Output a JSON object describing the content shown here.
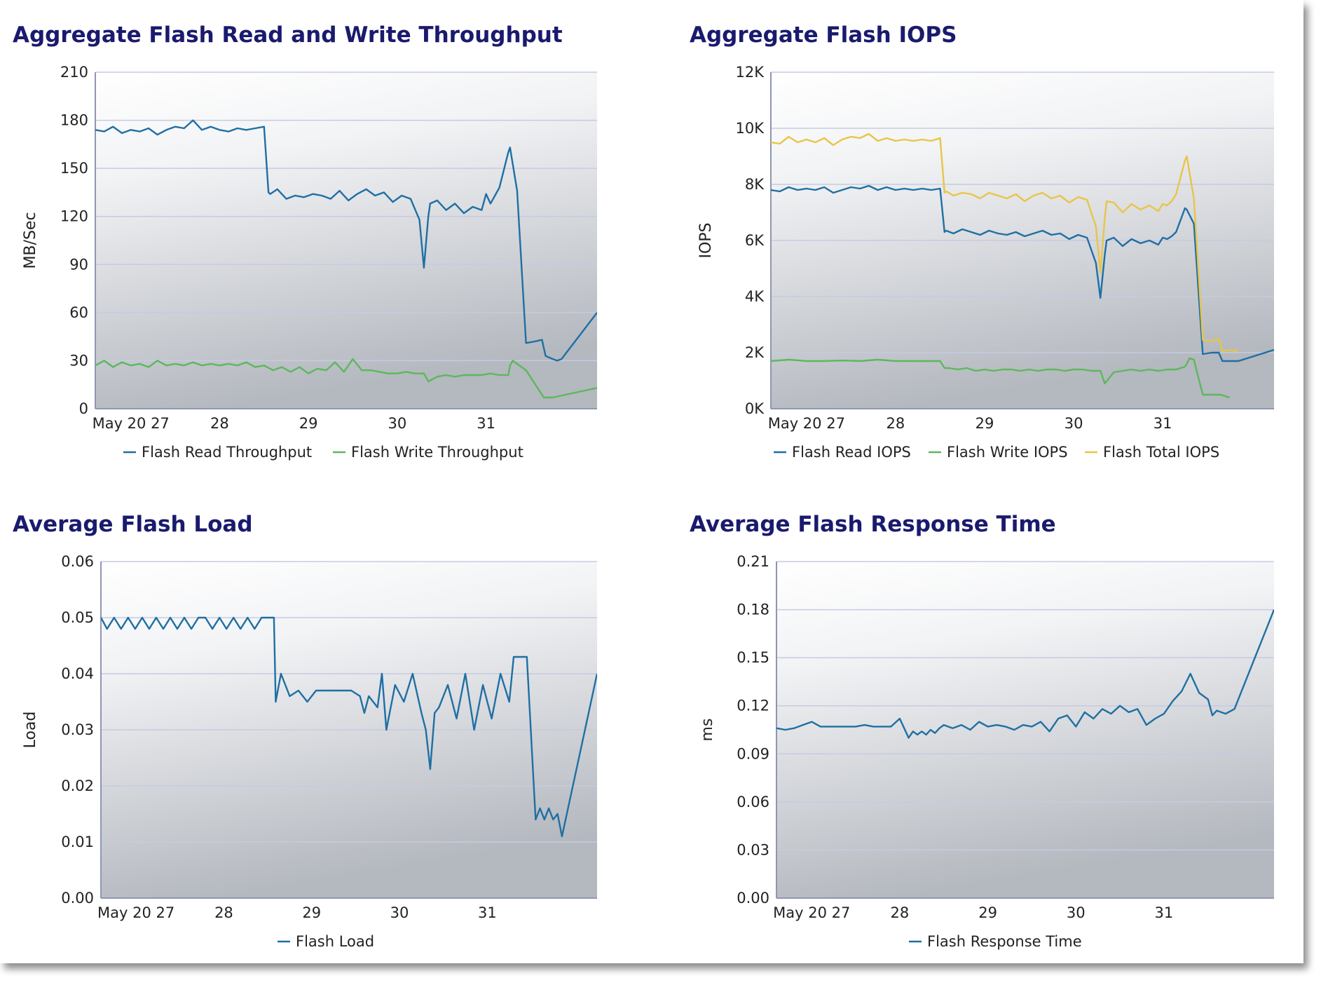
{
  "chart_data": [
    {
      "id": "throughput",
      "type": "line",
      "title": "Aggregate Flash Read and Write Throughput",
      "xlabel": "",
      "ylabel": "MB/Sec",
      "ylim": [
        0,
        210
      ],
      "yticks": [
        0,
        30,
        60,
        90,
        120,
        150,
        180,
        210
      ],
      "ytick_labels": [
        "0",
        "30",
        "60",
        "90",
        "120",
        "150",
        "180",
        "210"
      ],
      "xlim": [
        26.35,
        32.0
      ],
      "xticks": [
        26.75,
        27.75,
        28.75,
        29.75,
        30.75
      ],
      "xtick_labels": [
        "May 20 27",
        "28",
        "29",
        "30",
        "31"
      ],
      "grid": true,
      "legend_position": "bottom",
      "series": [
        {
          "name": "Flash Read Throughput",
          "color": "#1f6fa3",
          "x": [
            26.35,
            26.45,
            26.55,
            26.65,
            26.75,
            26.85,
            26.95,
            27.05,
            27.15,
            27.25,
            27.35,
            27.45,
            27.55,
            27.65,
            27.75,
            27.85,
            27.95,
            28.05,
            28.15,
            28.25,
            28.3,
            28.32,
            28.4,
            28.5,
            28.6,
            28.7,
            28.8,
            28.9,
            29.0,
            29.1,
            29.2,
            29.3,
            29.4,
            29.5,
            29.6,
            29.7,
            29.8,
            29.9,
            30.0,
            30.05,
            30.1,
            30.12,
            30.2,
            30.3,
            30.4,
            30.5,
            30.6,
            30.7,
            30.75,
            30.8,
            30.85,
            30.9,
            31.0,
            31.02,
            31.1,
            31.2,
            31.3,
            31.38,
            31.42,
            31.5,
            31.55,
            31.6,
            32.0
          ],
          "values": [
            174,
            173,
            176,
            172,
            174,
            173,
            175,
            171,
            174,
            176,
            175,
            180,
            174,
            176,
            174,
            173,
            175,
            174,
            175,
            176,
            135,
            134,
            137,
            131,
            133,
            132,
            134,
            133,
            131,
            136,
            130,
            134,
            137,
            133,
            135,
            129,
            133,
            131,
            118,
            88,
            120,
            128,
            130,
            124,
            128,
            122,
            126,
            124,
            134,
            128,
            133,
            138,
            160,
            163,
            136,
            41,
            42,
            43,
            33,
            31,
            30,
            31,
            60
          ]
        },
        {
          "name": "Flash Write Throughput",
          "color": "#5cb85c",
          "x": [
            26.35,
            26.45,
            26.55,
            26.65,
            26.75,
            26.85,
            26.95,
            27.05,
            27.15,
            27.25,
            27.35,
            27.45,
            27.55,
            27.65,
            27.75,
            27.85,
            27.95,
            28.05,
            28.15,
            28.25,
            28.35,
            28.45,
            28.55,
            28.65,
            28.75,
            28.85,
            28.95,
            29.05,
            29.15,
            29.25,
            29.35,
            29.45,
            29.55,
            29.65,
            29.75,
            29.85,
            29.95,
            30.05,
            30.1,
            30.2,
            30.3,
            30.4,
            30.5,
            30.6,
            30.7,
            30.8,
            30.9,
            31.0,
            31.02,
            31.05,
            31.1,
            31.2,
            31.4,
            31.5,
            32.0
          ],
          "values": [
            27,
            30,
            26,
            29,
            27,
            28,
            26,
            30,
            27,
            28,
            27,
            29,
            27,
            28,
            27,
            28,
            27,
            29,
            26,
            27,
            24,
            26,
            23,
            26,
            22,
            25,
            24,
            29,
            23,
            31,
            24,
            24,
            23,
            22,
            22,
            23,
            22,
            22,
            17,
            20,
            21,
            20,
            21,
            21,
            21,
            22,
            21,
            21,
            27,
            30,
            28,
            24,
            7,
            7,
            13
          ]
        }
      ]
    },
    {
      "id": "iops",
      "type": "line",
      "title": "Aggregate Flash IOPS",
      "xlabel": "",
      "ylabel": "IOPS",
      "ylim": [
        0,
        12000
      ],
      "yticks": [
        0,
        2000,
        4000,
        6000,
        8000,
        10000,
        12000
      ],
      "ytick_labels": [
        "0K",
        "2K",
        "4K",
        "6K",
        "8K",
        "10K",
        "12K"
      ],
      "xlim": [
        26.35,
        32.0
      ],
      "xticks": [
        26.75,
        27.75,
        28.75,
        29.75,
        30.75
      ],
      "xtick_labels": [
        "May 20 27",
        "28",
        "29",
        "30",
        "31"
      ],
      "grid": true,
      "legend_position": "bottom",
      "series": [
        {
          "name": "Flash Read IOPS",
          "color": "#1f6fa3",
          "x": [
            26.35,
            26.45,
            26.55,
            26.65,
            26.75,
            26.85,
            26.95,
            27.05,
            27.15,
            27.25,
            27.35,
            27.45,
            27.55,
            27.65,
            27.75,
            27.85,
            27.95,
            28.05,
            28.15,
            28.25,
            28.3,
            28.32,
            28.4,
            28.5,
            28.6,
            28.7,
            28.8,
            28.9,
            29.0,
            29.1,
            29.2,
            29.3,
            29.4,
            29.5,
            29.6,
            29.7,
            29.8,
            29.9,
            30.0,
            30.05,
            30.1,
            30.12,
            30.2,
            30.3,
            30.4,
            30.5,
            30.6,
            30.7,
            30.75,
            30.8,
            30.85,
            30.9,
            31.0,
            31.02,
            31.1,
            31.2,
            31.3,
            31.38,
            31.42,
            31.5,
            31.55,
            31.6,
            32.0
          ],
          "values": [
            7800,
            7750,
            7900,
            7800,
            7850,
            7800,
            7900,
            7700,
            7800,
            7900,
            7850,
            7950,
            7800,
            7900,
            7800,
            7850,
            7800,
            7850,
            7800,
            7850,
            6300,
            6350,
            6250,
            6400,
            6300,
            6200,
            6350,
            6250,
            6200,
            6300,
            6150,
            6250,
            6350,
            6200,
            6250,
            6050,
            6200,
            6100,
            5200,
            3950,
            5500,
            6000,
            6100,
            5800,
            6050,
            5900,
            6000,
            5850,
            6100,
            6050,
            6150,
            6300,
            7150,
            7100,
            6600,
            1950,
            2000,
            2000,
            1700,
            1700,
            1700,
            1700,
            2100
          ]
        },
        {
          "name": "Flash Write IOPS",
          "color": "#5cb85c",
          "x": [
            26.35,
            26.55,
            26.75,
            26.95,
            27.15,
            27.35,
            27.55,
            27.75,
            27.95,
            28.15,
            28.25,
            28.3,
            28.35,
            28.45,
            28.55,
            28.65,
            28.75,
            28.85,
            28.95,
            29.05,
            29.15,
            29.25,
            29.35,
            29.45,
            29.55,
            29.65,
            29.75,
            29.85,
            29.95,
            30.05,
            30.1,
            30.2,
            30.3,
            30.4,
            30.5,
            30.6,
            30.7,
            30.8,
            30.9,
            31.0,
            31.02,
            31.05,
            31.1,
            31.2,
            31.4,
            31.5
          ],
          "values": [
            1700,
            1750,
            1700,
            1700,
            1720,
            1700,
            1750,
            1700,
            1700,
            1700,
            1700,
            1450,
            1450,
            1400,
            1450,
            1350,
            1400,
            1350,
            1400,
            1400,
            1350,
            1400,
            1350,
            1400,
            1400,
            1350,
            1400,
            1400,
            1350,
            1350,
            900,
            1300,
            1350,
            1400,
            1350,
            1400,
            1350,
            1400,
            1400,
            1500,
            1600,
            1800,
            1750,
            500,
            500,
            400
          ]
        },
        {
          "name": "Flash Total IOPS",
          "color": "#e8c547",
          "x": [
            26.35,
            26.45,
            26.55,
            26.65,
            26.75,
            26.85,
            26.95,
            27.05,
            27.15,
            27.25,
            27.35,
            27.45,
            27.55,
            27.65,
            27.75,
            27.85,
            27.95,
            28.05,
            28.15,
            28.25,
            28.3,
            28.32,
            28.4,
            28.5,
            28.6,
            28.7,
            28.8,
            28.9,
            29.0,
            29.1,
            29.2,
            29.3,
            29.4,
            29.5,
            29.6,
            29.7,
            29.8,
            29.9,
            30.0,
            30.05,
            30.1,
            30.12,
            30.2,
            30.3,
            30.4,
            30.5,
            30.6,
            30.7,
            30.75,
            30.8,
            30.85,
            30.9,
            31.0,
            31.02,
            31.1,
            31.2,
            31.3,
            31.38,
            31.42,
            31.5,
            31.55,
            31.6
          ],
          "values": [
            9500,
            9450,
            9700,
            9500,
            9600,
            9500,
            9650,
            9400,
            9600,
            9700,
            9650,
            9800,
            9550,
            9650,
            9550,
            9600,
            9550,
            9600,
            9550,
            9650,
            7700,
            7750,
            7600,
            7700,
            7650,
            7500,
            7700,
            7600,
            7500,
            7650,
            7400,
            7600,
            7700,
            7500,
            7600,
            7350,
            7550,
            7450,
            6500,
            4850,
            6800,
            7400,
            7350,
            7000,
            7300,
            7100,
            7250,
            7050,
            7300,
            7250,
            7400,
            7650,
            8850,
            9000,
            7500,
            2450,
            2400,
            2500,
            2050,
            2100,
            2050,
            2100
          ]
        }
      ]
    },
    {
      "id": "load",
      "type": "line",
      "title": "Average Flash Load",
      "xlabel": "",
      "ylabel": "Load",
      "ylim": [
        0,
        0.06
      ],
      "yticks": [
        0,
        0.01,
        0.02,
        0.03,
        0.04,
        0.05,
        0.06
      ],
      "ytick_labels": [
        "0.00",
        "0.01",
        "0.02",
        "0.03",
        "0.04",
        "0.05",
        "0.06"
      ],
      "xlim": [
        26.35,
        32.0
      ],
      "xticks": [
        26.75,
        27.75,
        28.75,
        29.75,
        30.75
      ],
      "xtick_labels": [
        "May 20 27",
        "28",
        "29",
        "30",
        "31"
      ],
      "grid": true,
      "legend_position": "bottom",
      "series": [
        {
          "name": "Flash Load",
          "color": "#1f6fa3",
          "x": [
            26.35,
            26.42,
            26.5,
            26.58,
            26.66,
            26.74,
            26.82,
            26.9,
            26.98,
            27.06,
            27.14,
            27.22,
            27.3,
            27.38,
            27.46,
            27.54,
            27.62,
            27.7,
            27.78,
            27.86,
            27.94,
            28.02,
            28.1,
            28.18,
            28.26,
            28.32,
            28.34,
            28.4,
            28.5,
            28.6,
            28.7,
            28.8,
            28.9,
            29.0,
            29.1,
            29.2,
            29.3,
            29.35,
            29.4,
            29.5,
            29.55,
            29.6,
            29.7,
            29.8,
            29.9,
            30.0,
            30.05,
            30.1,
            30.15,
            30.2,
            30.3,
            30.4,
            30.5,
            30.6,
            30.7,
            30.8,
            30.9,
            31.0,
            31.05,
            31.1,
            31.2,
            31.3,
            31.35,
            31.4,
            31.45,
            31.5,
            31.55,
            31.6,
            32.0
          ],
          "values": [
            0.05,
            0.048,
            0.05,
            0.048,
            0.05,
            0.048,
            0.05,
            0.048,
            0.05,
            0.048,
            0.05,
            0.048,
            0.05,
            0.048,
            0.05,
            0.05,
            0.048,
            0.05,
            0.048,
            0.05,
            0.048,
            0.05,
            0.048,
            0.05,
            0.05,
            0.05,
            0.035,
            0.04,
            0.036,
            0.037,
            0.035,
            0.037,
            0.037,
            0.037,
            0.037,
            0.037,
            0.036,
            0.033,
            0.036,
            0.034,
            0.04,
            0.03,
            0.038,
            0.035,
            0.04,
            0.033,
            0.03,
            0.023,
            0.033,
            0.034,
            0.038,
            0.032,
            0.04,
            0.03,
            0.038,
            0.032,
            0.04,
            0.035,
            0.043,
            0.043,
            0.043,
            0.014,
            0.016,
            0.014,
            0.016,
            0.014,
            0.015,
            0.011,
            0.04
          ]
        }
      ]
    },
    {
      "id": "response",
      "type": "line",
      "title": "Average Flash Response Time",
      "xlabel": "",
      "ylabel": "ms",
      "ylim": [
        0,
        0.21
      ],
      "yticks": [
        0,
        0.03,
        0.06,
        0.09,
        0.12,
        0.15,
        0.18,
        0.21
      ],
      "ytick_labels": [
        "0.00",
        "0.03",
        "0.06",
        "0.09",
        "0.12",
        "0.15",
        "0.18",
        "0.21"
      ],
      "xlim": [
        26.35,
        32.0
      ],
      "xticks": [
        26.75,
        27.75,
        28.75,
        29.75,
        30.75
      ],
      "xtick_labels": [
        "May 20 27",
        "28",
        "29",
        "30",
        "31"
      ],
      "grid": true,
      "legend_position": "bottom",
      "series": [
        {
          "name": "Flash Response Time",
          "color": "#1f6fa3",
          "x": [
            26.35,
            26.45,
            26.55,
            26.65,
            26.75,
            26.85,
            26.95,
            27.05,
            27.15,
            27.25,
            27.35,
            27.45,
            27.55,
            27.65,
            27.75,
            27.85,
            27.9,
            27.95,
            28.0,
            28.05,
            28.1,
            28.15,
            28.2,
            28.25,
            28.35,
            28.45,
            28.55,
            28.65,
            28.75,
            28.85,
            28.95,
            29.05,
            29.15,
            29.25,
            29.35,
            29.45,
            29.55,
            29.65,
            29.75,
            29.85,
            29.95,
            30.05,
            30.15,
            30.25,
            30.35,
            30.45,
            30.55,
            30.65,
            30.75,
            30.85,
            30.95,
            31.05,
            31.15,
            31.25,
            31.3,
            31.35,
            31.45,
            31.55,
            32.0
          ],
          "values": [
            0.106,
            0.105,
            0.106,
            0.108,
            0.11,
            0.107,
            0.107,
            0.107,
            0.107,
            0.107,
            0.108,
            0.107,
            0.107,
            0.107,
            0.112,
            0.1,
            0.104,
            0.102,
            0.104,
            0.102,
            0.105,
            0.103,
            0.106,
            0.108,
            0.106,
            0.108,
            0.105,
            0.11,
            0.107,
            0.108,
            0.107,
            0.105,
            0.108,
            0.107,
            0.11,
            0.104,
            0.112,
            0.114,
            0.107,
            0.116,
            0.112,
            0.118,
            0.115,
            0.12,
            0.116,
            0.118,
            0.108,
            0.112,
            0.115,
            0.123,
            0.129,
            0.14,
            0.128,
            0.124,
            0.114,
            0.117,
            0.115,
            0.118,
            0.18
          ]
        }
      ]
    }
  ]
}
